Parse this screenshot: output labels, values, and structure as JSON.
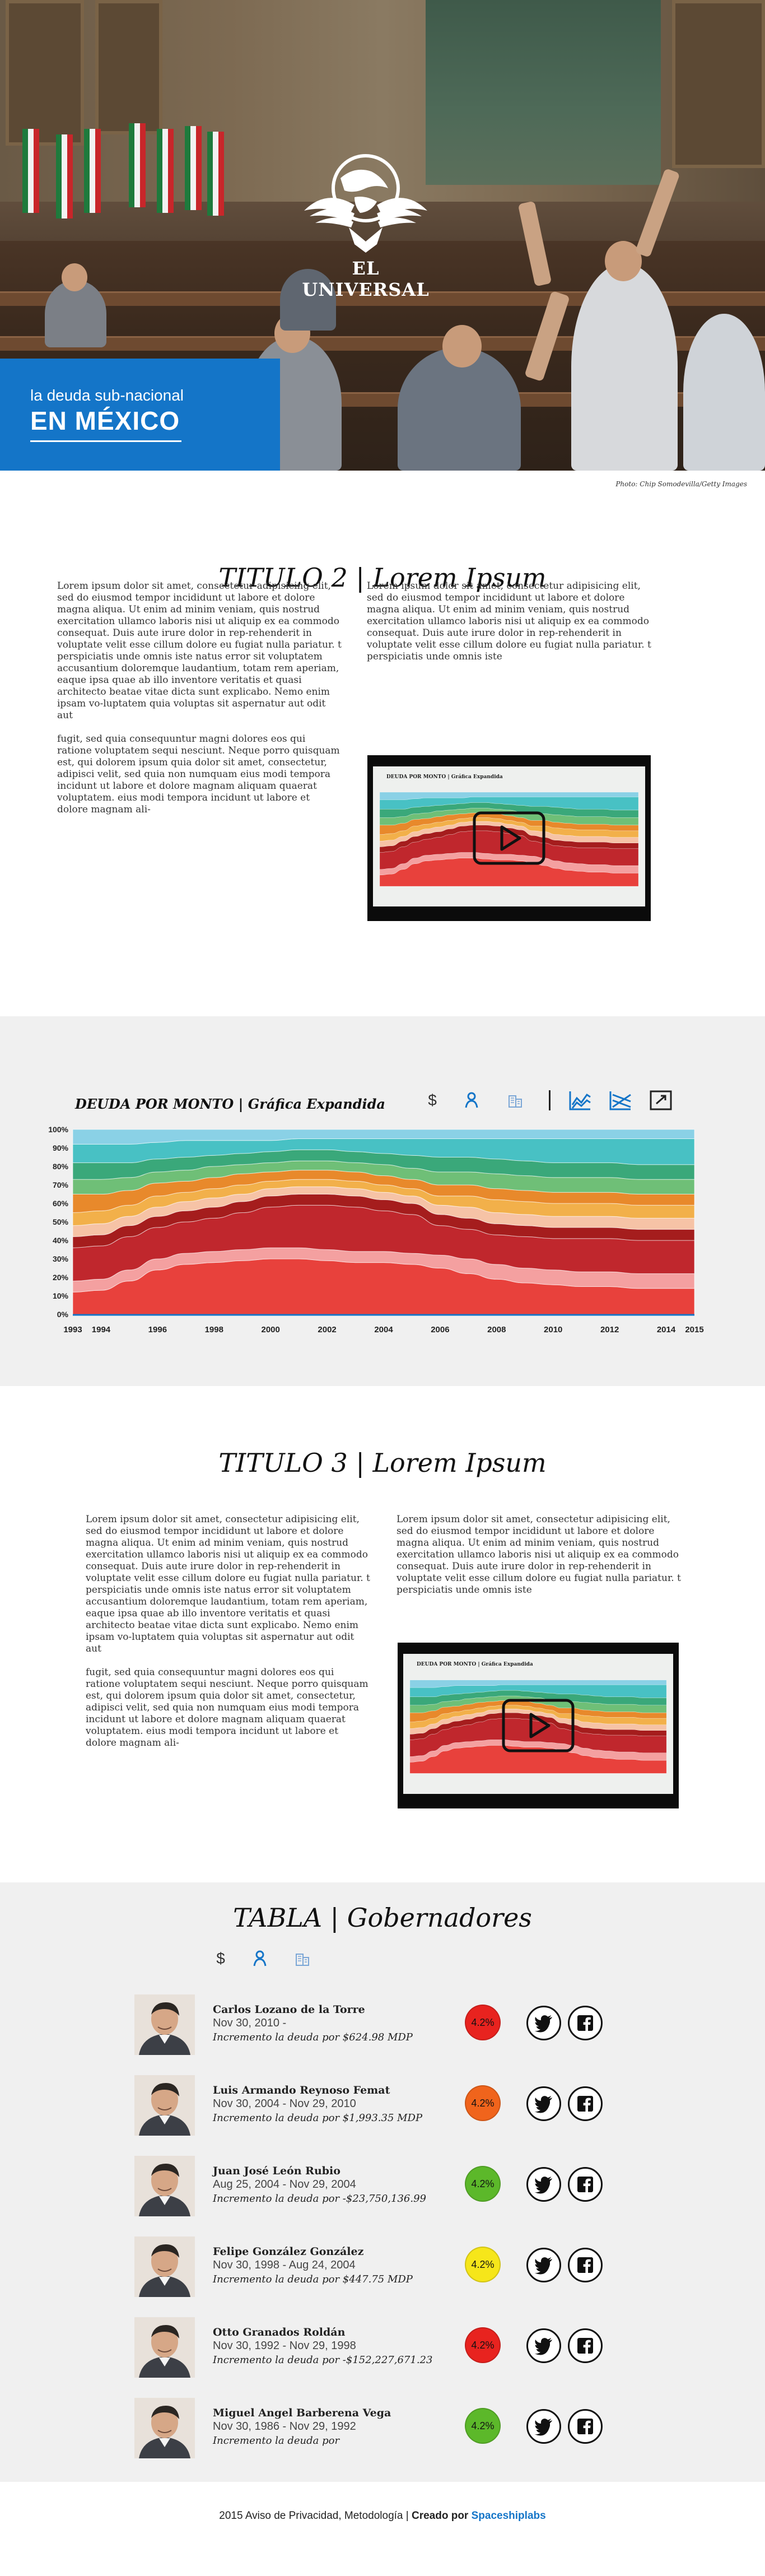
{
  "hero": {
    "brand": "EL UNIVERSAL",
    "tagline_line1": "la deuda sub-nacional",
    "tagline_line2": "EN MÉXICO",
    "photo_credit": "Photo: Chip Somodevilla/Getty Images",
    "accent_color": "#1475c8"
  },
  "section2": {
    "title": "TITULO 2 | Lorem Ipsum",
    "col_left_p1": "Lorem ipsum dolor sit amet, consectetur adipisicing elit, sed do eiusmod tempor incididunt ut labore et dolore magna aliqua. Ut enim ad minim veniam, quis nostrud exercitation ullamco laboris nisi ut aliquip ex ea commodo consequat. Duis aute irure dolor in rep-rehenderit in voluptate velit esse cillum dolore eu fugiat nulla pariatur. t perspiciatis unde omnis iste natus error sit voluptatem accusantium doloremque laudantium, totam rem aperiam, eaque ipsa quae ab illo inventore veritatis et quasi architecto beatae vitae dicta sunt explicabo. Nemo enim ipsam vo-luptatem quia voluptas sit aspernatur aut odit aut",
    "col_left_p2": "fugit, sed quia consequuntur magni dolores eos qui ratione voluptatem sequi nesciunt. Neque porro quisquam est, qui dolorem ipsum quia dolor sit amet, consectetur, adipisci velit, sed quia non numquam eius modi tempora incidunt ut labore et dolore magnam aliquam quaerat voluptatem. eius modi tempora incidunt ut labore et dolore magnam ali-",
    "col_right_p1": "Lorem ipsum dolor sit amet, consectetur adipisicing elit, sed do eiusmod tempor incididunt ut labore et dolore magna aliqua. Ut enim ad minim veniam, quis nostrud exercitation ullamco laboris nisi ut aliquip ex ea commodo consequat. Duis aute irure dolor in rep-rehenderit in voluptate velit esse cillum dolore eu fugiat nulla pariatur. t perspiciatis unde omnis iste",
    "video_caption": "DEUDA POR MONTO | Gráfica Expandida"
  },
  "chart": {
    "title": "DEUDA POR MONTO | Gráfica Expandida",
    "icons": [
      "dollar-icon",
      "person-icon",
      "building-icon",
      "stream-chart-icon",
      "area-chart-icon",
      "expand-icon"
    ],
    "dollar_symbol": "$"
  },
  "chart_data": {
    "type": "area",
    "stacked": "100%",
    "x": [
      1993,
      1994,
      1995,
      1996,
      1997,
      1998,
      1999,
      2000,
      2001,
      2002,
      2003,
      2004,
      2005,
      2006,
      2007,
      2008,
      2009,
      2010,
      2011,
      2012,
      2013,
      2014,
      2015
    ],
    "x_ticks": [
      "1993",
      "1994",
      "1996",
      "1998",
      "2000",
      "2002",
      "2004",
      "2006",
      "2008",
      "2010",
      "2012",
      "2014",
      "2015"
    ],
    "y_ticks": [
      "0%",
      "10%",
      "20%",
      "30%",
      "40%",
      "50%",
      "60%",
      "70%",
      "80%",
      "90%",
      "100%"
    ],
    "ylim": [
      0,
      100
    ],
    "series": [
      {
        "color": "#e8413c",
        "values": [
          12,
          13,
          18,
          24,
          27,
          28,
          29,
          30,
          30,
          29,
          28,
          28,
          27,
          25,
          22,
          19,
          17,
          16,
          15,
          15,
          14,
          14,
          14
        ]
      },
      {
        "color": "#f4a0a0",
        "values": [
          6,
          6,
          6,
          6,
          6,
          6,
          6,
          6,
          6,
          6,
          6,
          6,
          6,
          7,
          8,
          8,
          8,
          8,
          8,
          8,
          8,
          8,
          8
        ]
      },
      {
        "color": "#c0272d",
        "values": [
          18,
          18,
          18,
          17,
          17,
          18,
          20,
          22,
          23,
          24,
          24,
          22,
          21,
          16,
          16,
          16,
          17,
          17,
          18,
          18,
          18,
          18,
          18
        ]
      },
      {
        "color": "#a51d1d",
        "values": [
          6,
          6,
          6,
          6,
          6,
          6,
          6,
          6,
          6,
          6,
          6,
          6,
          6,
          6,
          6,
          6,
          6,
          6,
          6,
          6,
          6,
          6,
          6
        ]
      },
      {
        "color": "#f6c3a6",
        "values": [
          6,
          6,
          5,
          5,
          5,
          5,
          4,
          4,
          4,
          4,
          4,
          4,
          4,
          5,
          6,
          6,
          6,
          6,
          6,
          6,
          6,
          6,
          6
        ]
      },
      {
        "color": "#f2b04a",
        "values": [
          7,
          7,
          6,
          6,
          5,
          5,
          5,
          4,
          4,
          4,
          4,
          4,
          4,
          5,
          6,
          7,
          7,
          7,
          7,
          7,
          7,
          7,
          7
        ]
      },
      {
        "color": "#e8892b",
        "values": [
          10,
          9,
          8,
          7,
          6,
          6,
          6,
          5,
          5,
          5,
          5,
          5,
          5,
          6,
          6,
          6,
          6,
          6,
          6,
          6,
          6,
          6,
          6
        ]
      },
      {
        "color": "#6fbf77",
        "values": [
          8,
          8,
          7,
          6,
          6,
          6,
          5,
          5,
          5,
          5,
          5,
          6,
          6,
          7,
          7,
          8,
          8,
          8,
          8,
          8,
          8,
          8,
          8
        ]
      },
      {
        "color": "#3aa87a",
        "values": [
          9,
          9,
          8,
          7,
          7,
          6,
          6,
          6,
          6,
          6,
          6,
          6,
          7,
          8,
          8,
          8,
          8,
          8,
          8,
          8,
          8,
          8,
          8
        ]
      },
      {
        "color": "#48c1c4",
        "values": [
          10,
          10,
          10,
          9,
          9,
          8,
          7,
          6,
          6,
          6,
          7,
          8,
          9,
          10,
          10,
          11,
          12,
          13,
          13,
          13,
          14,
          14,
          14
        ]
      },
      {
        "color": "#8ad1e6",
        "values": [
          8,
          8,
          8,
          7,
          6,
          6,
          6,
          6,
          5,
          5,
          5,
          5,
          5,
          5,
          5,
          5,
          5,
          5,
          5,
          5,
          5,
          5,
          5
        ]
      }
    ]
  },
  "section3": {
    "title": "TITULO 3 | Lorem Ipsum",
    "col_left_p1": "Lorem ipsum dolor sit amet, consectetur adipisicing elit, sed do eiusmod tempor incididunt ut labore et dolore magna aliqua. Ut enim ad minim veniam, quis nostrud exercitation ullamco laboris nisi ut aliquip ex ea commodo consequat. Duis aute irure dolor in rep-rehenderit in voluptate velit esse cillum dolore eu fugiat nulla pariatur. t perspiciatis unde omnis iste natus error sit voluptatem accusantium doloremque laudantium, totam rem aperiam, eaque ipsa quae ab illo inventore veritatis et quasi architecto beatae vitae dicta sunt explicabo. Nemo enim ipsam vo-luptatem quia voluptas sit aspernatur aut odit aut",
    "col_left_p2": "fugit, sed quia consequuntur magni dolores eos qui ratione voluptatem sequi nesciunt. Neque porro quisquam est, qui dolorem ipsum quia dolor sit amet, consectetur, adipisci velit, sed quia non numquam eius modi tempora incidunt ut labore et dolore magnam aliquam quaerat voluptatem. eius modi tempora incidunt ut labore et dolore magnam ali-",
    "col_right_p1": "Lorem ipsum dolor sit amet, consectetur adipisicing elit, sed do eiusmod tempor incididunt ut labore et dolore magna aliqua. Ut enim ad minim veniam, quis nostrud exercitation ullamco laboris nisi ut aliquip ex ea commodo consequat. Duis aute irure dolor in rep-rehenderit in voluptate velit esse cillum dolore eu fugiat nulla pariatur. t perspiciatis unde omnis iste",
    "video_caption": "DEUDA POR MONTO | Gráfica Expandida"
  },
  "table": {
    "title": "TABLA | Gobernadores",
    "dollar_symbol": "$",
    "governors": [
      {
        "name": "Carlos Lozano de la Torre",
        "dates": "Nov 30, 2010 -",
        "debt": "Incremento la deuda por $624.98 MDP",
        "pct": "4.2%",
        "pct_color": "#e8231f"
      },
      {
        "name": "Luis Armando Reynoso Femat",
        "dates": "Nov 30, 2004 - Nov 29, 2010",
        "debt": "Incremento la deuda por $1,993.35 MDP",
        "pct": "4.2%",
        "pct_color": "#f0641c"
      },
      {
        "name": "Juan José León Rubio",
        "dates": "Aug 25, 2004 - Nov 29, 2004",
        "debt": "Incremento la deuda por -$23,750,136.99",
        "pct": "4.2%",
        "pct_color": "#5cb82a"
      },
      {
        "name": "Felipe González González",
        "dates": "Nov 30, 1998 - Aug 24, 2004",
        "debt": "Incremento la deuda por $447.75 MDP",
        "pct": "4.2%",
        "pct_color": "#f6e61a"
      },
      {
        "name": "Otto Granados Roldán",
        "dates": "Nov 30, 1992 - Nov 29, 1998",
        "debt": "Incremento la deuda por -$152,227,671.23",
        "pct": "4.2%",
        "pct_color": "#e8231f"
      },
      {
        "name": "Miguel Angel Barberena Vega",
        "dates": "Nov 30, 1986 - Nov 29, 1992",
        "debt": "Incremento la deuda por",
        "pct": "4.2%",
        "pct_color": "#5cb82a"
      }
    ]
  },
  "footer": {
    "year": "2015",
    "privacy": "Aviso de Privacidad,",
    "method": "Metodología",
    "sep": "|",
    "created": "Creado por",
    "brand": "Spaceshiplabs"
  }
}
